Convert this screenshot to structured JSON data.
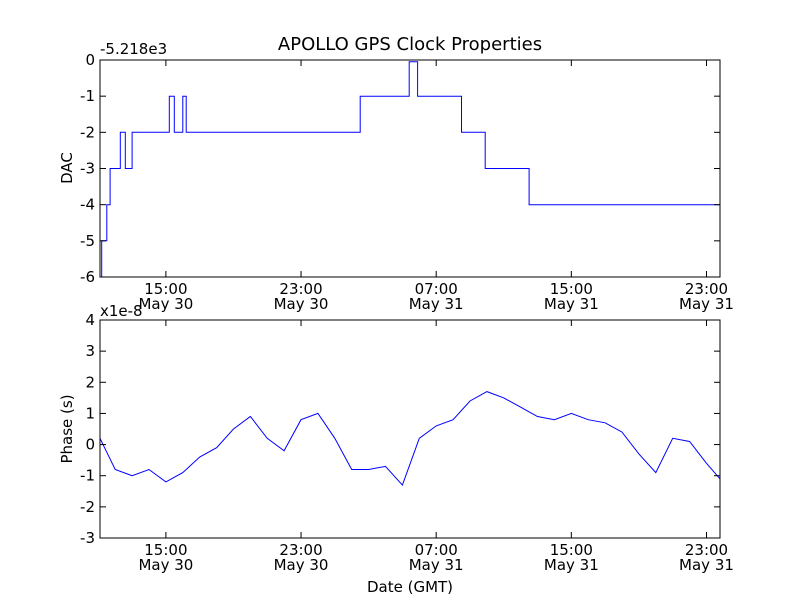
{
  "chart_data": {
    "type": "line",
    "title": "APOLLO GPS Clock Properties",
    "xlabel": "Date (GMT)",
    "x_ticks": [
      {
        "hour": 15,
        "time": "15:00",
        "date": "May 30"
      },
      {
        "hour": 23,
        "time": "23:00",
        "date": "May 30"
      },
      {
        "hour": 31,
        "time": "07:00",
        "date": "May 31"
      },
      {
        "hour": 39,
        "time": "15:00",
        "date": "May 31"
      },
      {
        "hour": 47,
        "time": "23:00",
        "date": "May 31"
      }
    ],
    "xlim_hours": [
      11.1,
      47.8
    ],
    "panels": [
      {
        "name": "dac",
        "ylabel": "DAC",
        "offset_text": "-5.218e3",
        "ylim": [
          -6,
          0
        ],
        "yticks": [
          0,
          -1,
          -2,
          -3,
          -4,
          -5,
          -6
        ],
        "ytick_labels": [
          "0",
          "-1",
          "-2",
          "-3",
          "-4",
          "-5",
          "-6"
        ],
        "color": "#0000ff",
        "series": {
          "name": "DAC",
          "hours": [
            11.1,
            11.2,
            11.5,
            11.7,
            12.3,
            12.6,
            13.0,
            15.2,
            15.5,
            16.0,
            16.2,
            20.0,
            21.2,
            23.4,
            25.0,
            26.5,
            29.4,
            29.9,
            31.4,
            32.5,
            33.4,
            33.9,
            35.6,
            36.5,
            39.2,
            40.0,
            42.5,
            44.0,
            47.3,
            47.8
          ],
          "values": [
            -6,
            -5,
            -4,
            -3,
            -2,
            -3,
            -2,
            -1,
            -2,
            -1,
            -2,
            -2,
            -2,
            -2,
            -2,
            -1,
            -0.05,
            -1,
            -1,
            -2,
            -2,
            -3,
            -3,
            -4,
            -4,
            -4,
            -4,
            -4,
            -4,
            -4
          ]
        }
      },
      {
        "name": "phase",
        "ylabel": "Phase (s)",
        "offset_text": "x1e-8",
        "ylim": [
          -3,
          4
        ],
        "yticks": [
          4,
          3,
          2,
          1,
          0,
          -1,
          -2,
          -3
        ],
        "ytick_labels": [
          "4",
          "3",
          "2",
          "1",
          "0",
          "-1",
          "-2",
          "-3"
        ],
        "color": "#0000ff",
        "series": {
          "name": "Phase",
          "hours": [
            11.1,
            12.0,
            13.0,
            14.0,
            15.0,
            16.0,
            17.0,
            18.0,
            19.0,
            20.0,
            21.0,
            22.0,
            23.0,
            24.0,
            25.0,
            26.0,
            27.0,
            28.0,
            29.0,
            30.0,
            31.0,
            32.0,
            33.0,
            34.0,
            35.0,
            36.0,
            37.0,
            38.0,
            39.0,
            40.0,
            41.0,
            42.0,
            43.0,
            44.0,
            45.0,
            46.0,
            47.0,
            47.8
          ],
          "values": [
            0.2,
            -0.8,
            -1.0,
            -0.8,
            -1.2,
            -0.9,
            -0.4,
            -0.1,
            0.5,
            0.9,
            0.2,
            -0.2,
            0.8,
            1.0,
            0.2,
            -0.8,
            -0.8,
            -0.7,
            -1.3,
            0.2,
            0.6,
            0.8,
            1.4,
            1.7,
            1.5,
            1.2,
            0.9,
            0.8,
            1.0,
            0.8,
            0.7,
            0.4,
            -0.3,
            -0.9,
            0.2,
            0.1,
            -0.6,
            -1.1
          ]
        }
      }
    ]
  }
}
